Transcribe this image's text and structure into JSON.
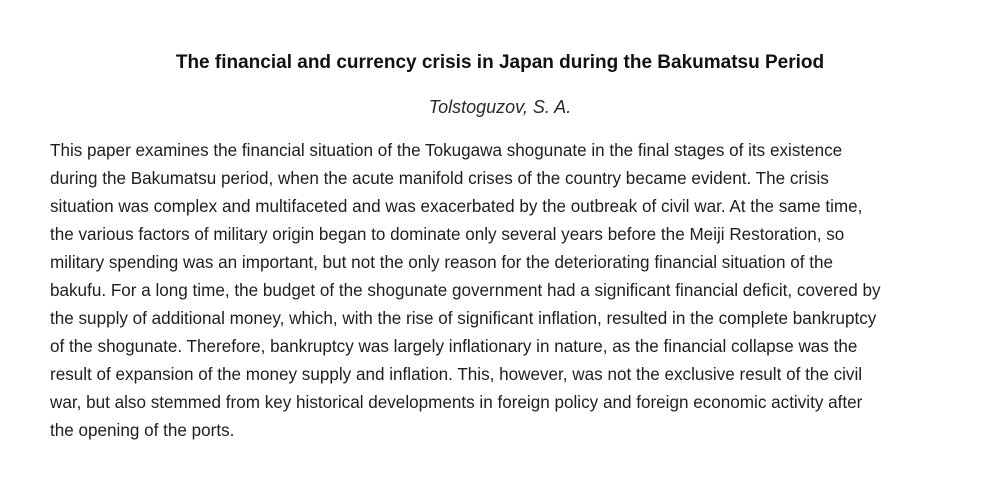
{
  "paper": {
    "title": "The financial and currency crisis in Japan during the Bakumatsu Period",
    "author": "Tolstoguzov, S. A.",
    "abstract_lines": [
      "This paper examines the financial situation of the Tokugawa shogunate in the final stages of its existence",
      "during the Bakumatsu period, when the acute manifold crises of the country became evident. The crisis",
      "situation was complex and multifaceted and was exacerbated by the outbreak of civil war. At the same time,",
      "the various factors of military origin began to dominate only several years before the Meiji Restoration, so",
      "military spending was an important, but not the only reason for the deteriorating financial situation of the",
      "bakufu. For a long time, the budget of the shogunate government had a significant financial deficit, covered by",
      "the supply of additional money, which, with the rise of significant inflation, resulted in the complete bankruptcy",
      "of the shogunate. Therefore, bankruptcy was largely inflationary in nature, as the financial collapse was the",
      "result of expansion of the money supply and inflation. This, however, was not the exclusive result of the civil",
      "war, but also stemmed from key historical developments in foreign policy and foreign economic activity after",
      "the opening of the ports."
    ]
  }
}
